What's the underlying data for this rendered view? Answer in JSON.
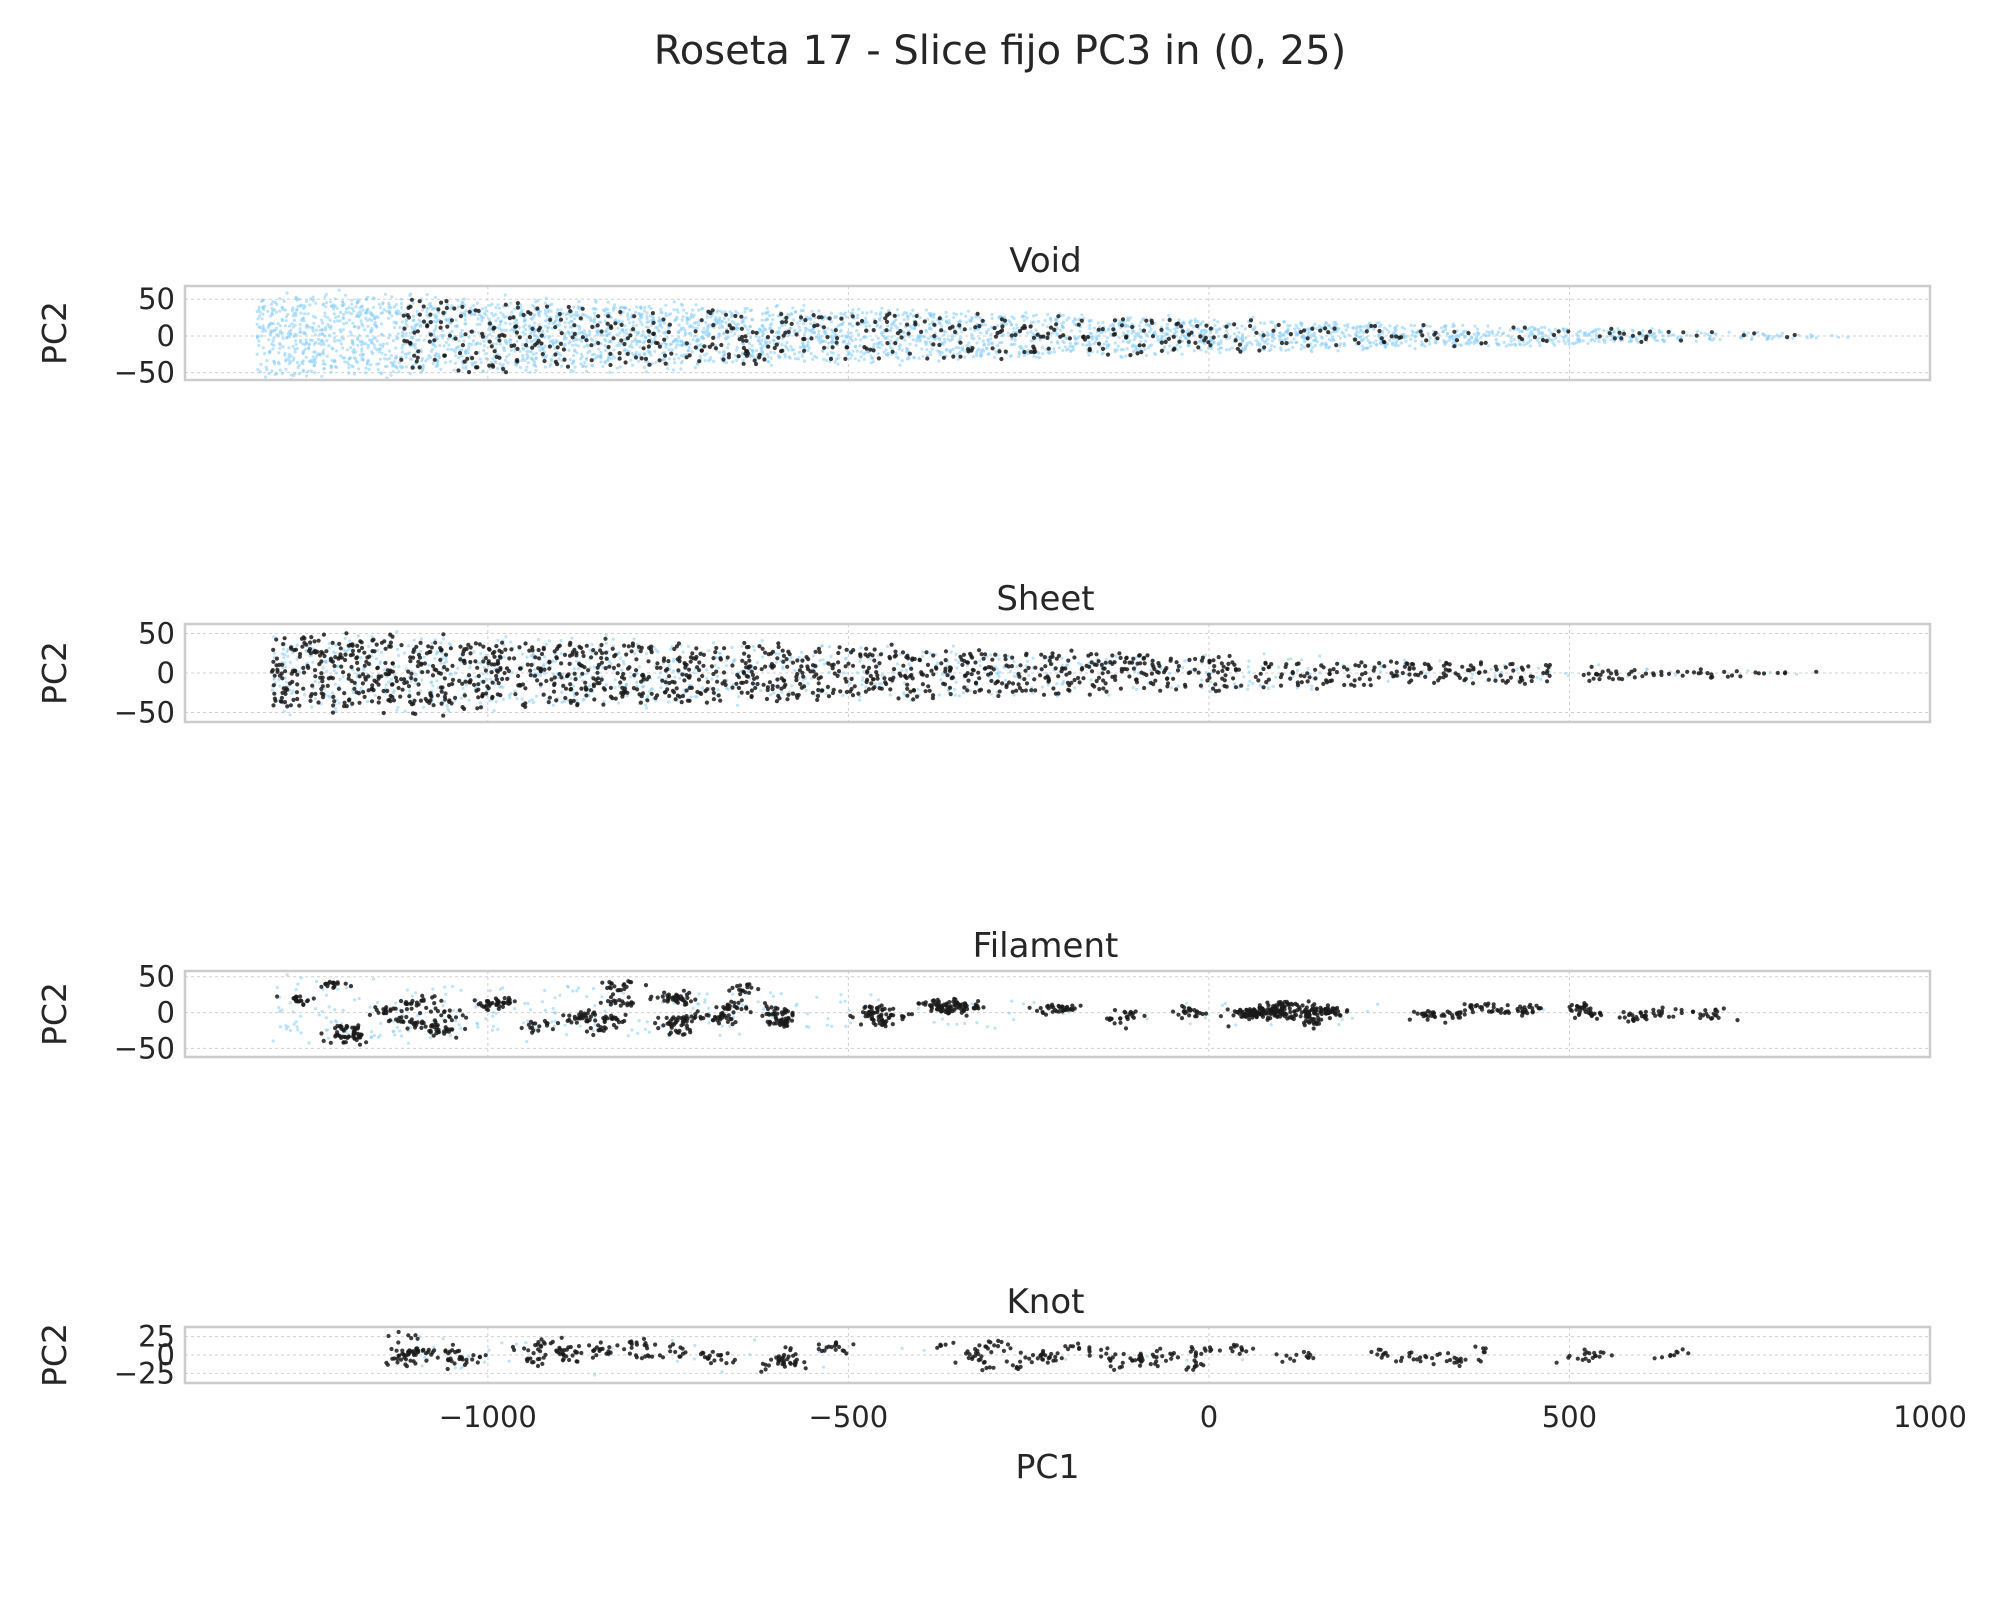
{
  "figure": {
    "title": "Roseta 17 - Slice fijo PC3 in (0, 25)"
  },
  "colors": {
    "background_points": "#87cefa",
    "highlight_points": "#1a1a1a",
    "frame": "#cccccc",
    "grid": "#d0d0d0",
    "text": "#262626"
  },
  "chart_data": {
    "type": "scatter",
    "shared_x": true,
    "xlabel": "PC1",
    "xlim": [
      -1420,
      1000
    ],
    "xticks": [
      -1000,
      -500,
      0,
      500,
      1000
    ],
    "xtick_labels": [
      "−1000",
      "−500",
      "0",
      "500",
      "1000"
    ],
    "grid": true,
    "panels": [
      {
        "title": "Void",
        "ylabel": "PC2",
        "ylim": [
          -60,
          68
        ],
        "yticks": [
          50,
          0,
          -50
        ],
        "ytick_labels": [
          "50",
          "0",
          "−50"
        ],
        "series": [
          {
            "role": "background",
            "color": "#87cefa",
            "generator": {
              "count": 3600,
              "x_range": [
                -1320,
                890
              ],
              "y_scale_at_left": 62,
              "y_scale_at_right": 2,
              "density_bias": 0.55,
              "seed": 11
            }
          },
          {
            "role": "highlight",
            "color": "#1a1a1a",
            "generator": {
              "count": 520,
              "x_range": [
                -1120,
                880
              ],
              "y_scale_at_left": 55,
              "y_scale_at_right": 2,
              "density_bias": 0.45,
              "seed": 12
            }
          }
        ]
      },
      {
        "title": "Sheet",
        "ylabel": "PC2",
        "ylim": [
          -62,
          62
        ],
        "yticks": [
          50,
          0,
          -50
        ],
        "ytick_labels": [
          "50",
          "0",
          "−50"
        ],
        "series": [
          {
            "role": "background",
            "color": "#87cefa",
            "generator": {
              "count": 900,
              "x_range": [
                -1300,
                880
              ],
              "y_scale_at_left": 58,
              "y_scale_at_right": 3,
              "density_bias": 0.4,
              "seed": 21
            }
          },
          {
            "role": "highlight",
            "color": "#1a1a1a",
            "generator": {
              "count": 1400,
              "x_range": [
                -1300,
                885
              ],
              "y_scale_at_left": 55,
              "y_scale_at_right": 3,
              "density_bias": 0.5,
              "seed": 22
            }
          }
        ]
      },
      {
        "title": "Filament",
        "ylabel": "PC2",
        "ylim": [
          -62,
          58
        ],
        "yticks": [
          50,
          0,
          -50
        ],
        "ytick_labels": [
          "50",
          "0",
          "−50"
        ],
        "series": [
          {
            "role": "background",
            "color": "#87cefa",
            "generator": {
              "count": 260,
              "x_range": [
                -1300,
                880
              ],
              "y_scale_at_left": 50,
              "y_scale_at_right": 3,
              "density_bias": 0.3,
              "seed": 31
            }
          },
          {
            "role": "highlight",
            "color": "#1a1a1a",
            "generator": {
              "count": 1250,
              "x_range": [
                -1270,
                885
              ],
              "y_scale_at_left": 50,
              "y_scale_at_right": 3,
              "density_bias": 0.55,
              "clustered": true,
              "seed": 32
            }
          }
        ]
      },
      {
        "title": "Knot",
        "ylabel": "PC2",
        "ylim": [
          -38,
          38
        ],
        "yticks": [
          25,
          0,
          -25
        ],
        "ytick_labels": [
          "25",
          "0",
          "−25"
        ],
        "series": [
          {
            "role": "background",
            "color": "#87cefa",
            "generator": {
              "count": 40,
              "x_range": [
                -1100,
                850
              ],
              "y_scale_at_left": 30,
              "y_scale_at_right": 3,
              "density_bias": 0.2,
              "seed": 41
            }
          },
          {
            "role": "highlight",
            "color": "#1a1a1a",
            "generator": {
              "count": 520,
              "x_range": [
                -1130,
                845
              ],
              "y_scale_at_left": 35,
              "y_scale_at_right": 2,
              "density_bias": 0.6,
              "clustered": true,
              "seed": 42
            }
          }
        ]
      }
    ]
  }
}
